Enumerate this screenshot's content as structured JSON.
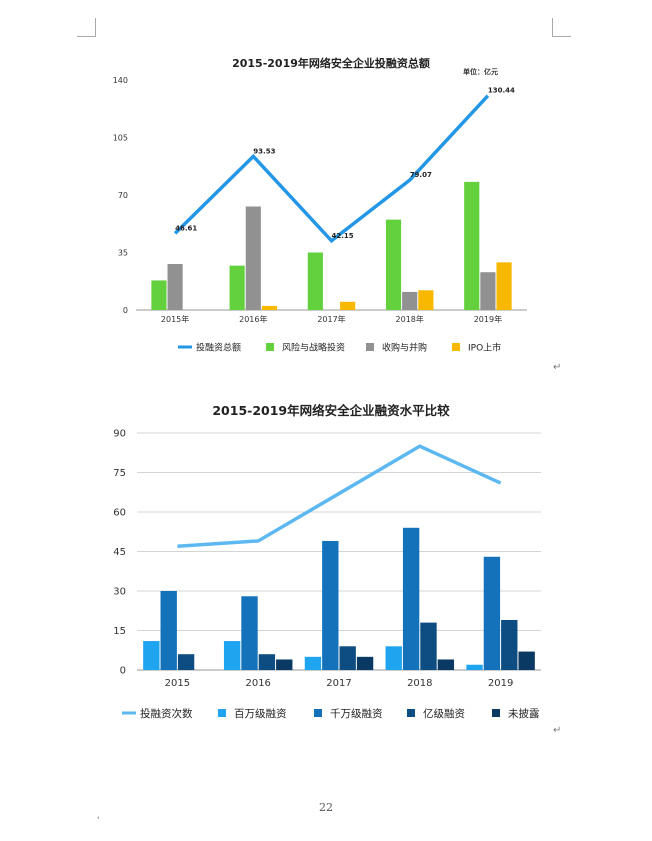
{
  "chart_data": [
    {
      "type": "bar",
      "title": "2015-2019年网络安全企业投融资总额",
      "unit_label": "单位：亿元",
      "categories": [
        "2015年",
        "2016年",
        "2017年",
        "2018年",
        "2019年"
      ],
      "ylim": [
        0,
        140
      ],
      "yticks": [
        "0",
        "35",
        "70",
        "105",
        "140"
      ],
      "grid": false,
      "legend_position": "bottom",
      "series": [
        {
          "name": "投融资总额",
          "kind": "line",
          "color": "#2496e6",
          "values": [
            46.61,
            93.53,
            42.15,
            79.07,
            130.44
          ],
          "labels": [
            "46.61",
            "93.53",
            "42.15",
            "79.07",
            "130.44"
          ]
        },
        {
          "name": "风险与战略投资",
          "kind": "bar",
          "color": "#63d13e",
          "values": [
            18,
            27,
            35,
            55,
            78
          ]
        },
        {
          "name": "收购与并购",
          "kind": "bar",
          "color": "#919191",
          "values": [
            28,
            63,
            0,
            11,
            23
          ]
        },
        {
          "name": "IPO上市",
          "kind": "bar",
          "color": "#f8b800",
          "values": [
            0,
            2.5,
            5,
            12,
            29
          ]
        }
      ]
    },
    {
      "type": "bar",
      "title": "2015-2019年网络安全企业融资水平比较",
      "categories": [
        "2015",
        "2016",
        "2017",
        "2018",
        "2019"
      ],
      "ylim": [
        0,
        90
      ],
      "yticks": [
        "0",
        "15",
        "30",
        "45",
        "60",
        "75",
        "90"
      ],
      "grid": true,
      "legend_position": "bottom",
      "series": [
        {
          "name": "投融资次数",
          "kind": "line",
          "color": "#5db8f2",
          "values": [
            47,
            49,
            67,
            85,
            71
          ]
        },
        {
          "name": "百万级融资",
          "kind": "bar",
          "color": "#1fa5f0",
          "values": [
            11,
            11,
            5,
            9,
            2
          ]
        },
        {
          "name": "千万级融资",
          "kind": "bar",
          "color": "#1472ba",
          "values": [
            30,
            28,
            49,
            54,
            43
          ]
        },
        {
          "name": "亿级融资",
          "kind": "bar",
          "color": "#0e4d82",
          "values": [
            6,
            6,
            9,
            18,
            19
          ]
        },
        {
          "name": "未披露",
          "kind": "bar",
          "color": "#0a3a63",
          "values": [
            0,
            4,
            5,
            4,
            7
          ]
        }
      ]
    }
  ],
  "page": {
    "number": "22",
    "return_mark": "↵",
    "stray_mark": "'"
  }
}
